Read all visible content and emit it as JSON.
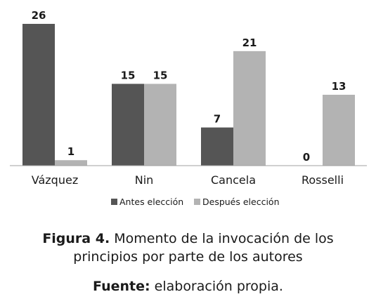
{
  "chart_data": {
    "type": "bar",
    "categories": [
      "Vázquez",
      "Nin",
      "Cancela",
      "Rosselli"
    ],
    "series": [
      {
        "name": "Antes elección",
        "values": [
          26,
          15,
          7,
          0
        ],
        "color": "#555555"
      },
      {
        "name": "Después elección",
        "values": [
          1,
          15,
          21,
          13
        ],
        "color": "#b3b3b3"
      }
    ],
    "ylim": [
      0,
      26
    ],
    "grid": false,
    "legend_position": "bottom",
    "data_labels": true
  },
  "caption": {
    "figure_label": "Figura 4.",
    "figure_text_line1": "Momento de la invocación de los",
    "figure_text_line2": "principios por parte de los autores",
    "source_label": "Fuente:",
    "source_text": "elaboración propia."
  }
}
